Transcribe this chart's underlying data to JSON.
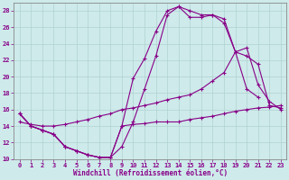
{
  "title": "",
  "xlabel": "Windchill (Refroidissement éolien,°C)",
  "ylabel": "",
  "bg_color": "#ceeaea",
  "line_color": "#880088",
  "xlim": [
    -0.5,
    23.5
  ],
  "ylim": [
    10,
    29
  ],
  "yticks": [
    10,
    12,
    14,
    16,
    18,
    20,
    22,
    24,
    26,
    28
  ],
  "xticks": [
    0,
    1,
    2,
    3,
    4,
    5,
    6,
    7,
    8,
    9,
    10,
    11,
    12,
    13,
    14,
    15,
    16,
    17,
    18,
    19,
    20,
    21,
    22,
    23
  ],
  "lines": [
    {
      "x": [
        0,
        1,
        2,
        3,
        4,
        5,
        6,
        7,
        8,
        9,
        10,
        11,
        12,
        13,
        14,
        15,
        16,
        17,
        18,
        19,
        20,
        21
      ],
      "y": [
        15.5,
        14.0,
        13.5,
        13.0,
        11.5,
        11.0,
        10.5,
        10.2,
        10.2,
        11.5,
        14.5,
        18.5,
        22.5,
        27.5,
        28.5,
        28.0,
        27.5,
        27.5,
        27.0,
        23.0,
        18.5,
        17.5
      ]
    },
    {
      "x": [
        0,
        1,
        2,
        3,
        4,
        5,
        6,
        7,
        8,
        9,
        10,
        11,
        12,
        13,
        14,
        15,
        16,
        17,
        18,
        19,
        20,
        21,
        22,
        23
      ],
      "y": [
        15.5,
        14.0,
        13.5,
        13.0,
        11.5,
        11.0,
        10.5,
        10.2,
        10.2,
        14.0,
        19.8,
        22.2,
        25.5,
        28.0,
        28.5,
        27.2,
        27.2,
        27.5,
        26.5,
        23.0,
        23.5,
        19.0,
        17.0,
        16.0
      ]
    },
    {
      "x": [
        0,
        1,
        2,
        3,
        4,
        5,
        6,
        7,
        8,
        9,
        10,
        11,
        12,
        13,
        14,
        15,
        16,
        17,
        18,
        19,
        20,
        21,
        22,
        23
      ],
      "y": [
        14.5,
        14.2,
        14.0,
        14.0,
        14.2,
        14.5,
        14.8,
        15.2,
        15.5,
        16.0,
        16.2,
        16.5,
        16.8,
        17.2,
        17.5,
        17.8,
        18.5,
        19.5,
        20.5,
        23.0,
        22.5,
        21.5,
        16.5,
        16.2
      ]
    },
    {
      "x": [
        0,
        1,
        2,
        3,
        4,
        5,
        6,
        7,
        8,
        9,
        10,
        11,
        12,
        13,
        14,
        15,
        16,
        17,
        18,
        19,
        20,
        21,
        22,
        23
      ],
      "y": [
        15.5,
        14.0,
        13.5,
        13.0,
        11.5,
        11.0,
        10.5,
        10.2,
        10.2,
        14.0,
        14.2,
        14.3,
        14.5,
        14.5,
        14.5,
        14.8,
        15.0,
        15.2,
        15.5,
        15.8,
        16.0,
        16.2,
        16.3,
        16.5
      ]
    }
  ]
}
